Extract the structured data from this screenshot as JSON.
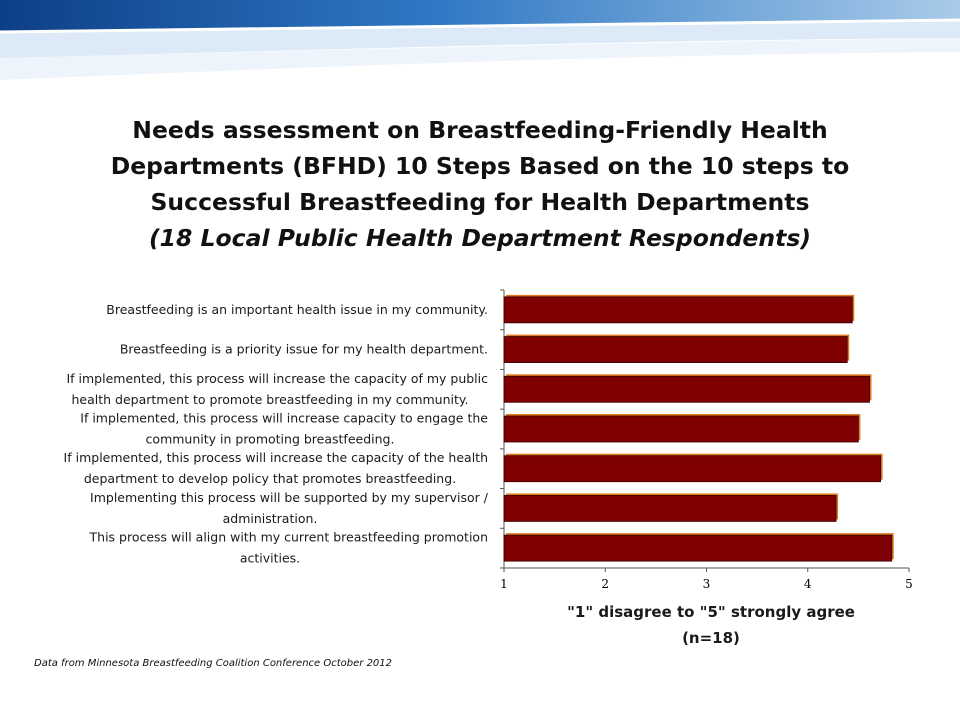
{
  "title": {
    "lines": [
      "Needs assessment on Breastfeeding-Friendly Health",
      "Departments (BFHD) 10 Steps Based on the 10 steps to",
      "Successful Breastfeeding for Health Departments"
    ],
    "subtitle": "(18 Local Public Health Department Respondents)"
  },
  "footer": "Data from Minnesota Breastfeeding Coalition Conference October 2012",
  "colors": {
    "bar_fill": "#7f0000",
    "bar_shadow": "#e07b22",
    "banner_blue": "#1f63b0"
  },
  "chart_data": {
    "type": "bar",
    "orientation": "horizontal",
    "categories": [
      [
        "Breastfeeding is an important health issue in my community."
      ],
      [
        "Breastfeeding is a priority issue for my health department."
      ],
      [
        "If implemented, this process will increase the capacity of my public",
        "health department to promote breastfeeding in my community."
      ],
      [
        "If implemented, this process will increase capacity to engage the",
        "community in promoting breastfeeding."
      ],
      [
        "If implemented, this process will increase the capacity of the health",
        "department to develop policy that promotes breastfeeding."
      ],
      [
        "Implementing this process will be supported by my supervisor /",
        "administration."
      ],
      [
        "This process will align with my current breastfeeding promotion",
        "activities."
      ]
    ],
    "values": [
      4.44,
      4.39,
      4.61,
      4.5,
      4.72,
      4.28,
      4.83
    ],
    "xlim": [
      1,
      5
    ],
    "xticks": [
      "1",
      "2",
      "3",
      "4",
      "5"
    ],
    "xlabel": [
      "\"1\" disagree to \"5\" strongly agree",
      "(n=18)"
    ],
    "grid": false
  }
}
